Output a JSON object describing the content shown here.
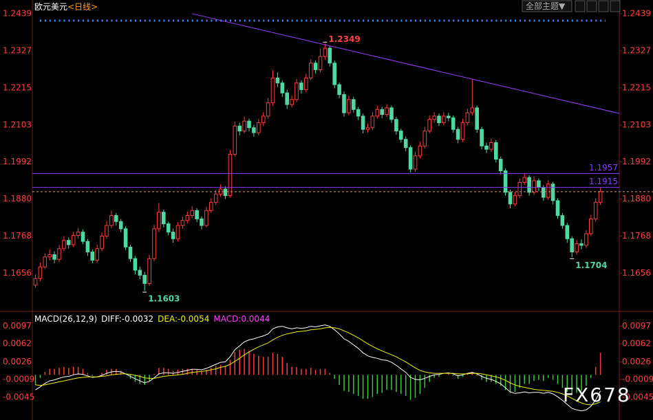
{
  "chart_data": [
    {
      "type": "candlestick",
      "title": "欧元美元",
      "period": "<日线>",
      "up_color": "#ff3c3c",
      "down_color": "#4fd9a2",
      "ylim": [
        1.1547,
        1.247
      ],
      "yticks": [
        1.2439,
        1.2327,
        1.2215,
        1.2103,
        1.1992,
        {
          "value": 1.188,
          "label": "1.1880"
        },
        1.1768,
        1.1656
      ],
      "open": [
        1.162,
        1.164,
        1.1675,
        1.1705,
        1.1712,
        1.1698,
        1.173,
        1.1755,
        1.1742,
        1.177,
        1.178,
        1.1752,
        1.172,
        1.1695,
        1.173,
        1.1768,
        1.18,
        1.183,
        1.1812,
        1.179,
        1.1735,
        1.17,
        1.1665,
        1.165,
        1.1625,
        1.17,
        1.179,
        1.184,
        1.1805,
        1.178,
        1.176,
        1.18,
        1.1815,
        1.183,
        1.1845,
        1.182,
        1.18,
        1.1845,
        1.187,
        1.1895,
        1.191,
        1.189,
        1.2015,
        1.21,
        1.2085,
        1.2115,
        1.2095,
        1.208,
        1.211,
        1.213,
        1.217,
        1.2245,
        1.223,
        1.22,
        1.2165,
        1.218,
        1.223,
        1.221,
        1.2245,
        1.229,
        1.227,
        1.231,
        1.2335,
        1.229,
        1.2225,
        1.2195,
        1.214,
        1.218,
        1.215,
        1.213,
        1.209,
        1.2095,
        1.213,
        1.215,
        1.2135,
        1.2155,
        1.212,
        1.2085,
        1.206,
        1.2035,
        1.197,
        1.201,
        1.204,
        1.2085,
        1.212,
        1.213,
        1.211,
        1.213,
        1.2125,
        1.209,
        1.206,
        1.211,
        1.214,
        1.2155,
        1.209,
        1.204,
        1.203,
        1.205,
        1.2,
        1.1965,
        1.19,
        1.1865,
        1.189,
        1.193,
        1.1945,
        1.19,
        1.1935,
        1.1915,
        1.1885,
        1.1925,
        1.1875,
        1.183,
        1.18,
        1.176,
        1.172,
        1.1745,
        1.174,
        1.1775,
        1.182,
        1.187
      ],
      "high": [
        1.1652,
        1.1688,
        1.1716,
        1.1728,
        1.1722,
        1.1741,
        1.1768,
        1.1764,
        1.1781,
        1.1792,
        1.1788,
        1.176,
        1.1728,
        1.1742,
        1.1779,
        1.1814,
        1.1845,
        1.1838,
        1.182,
        1.1798,
        1.1742,
        1.1708,
        1.1676,
        1.166,
        1.1712,
        1.1802,
        1.1868,
        1.1848,
        1.1812,
        1.179,
        1.181,
        1.1826,
        1.1842,
        1.1858,
        1.1852,
        1.1828,
        1.1856,
        1.1882,
        1.1908,
        1.1924,
        1.1918,
        1.2028,
        1.2114,
        1.211,
        1.2128,
        1.2122,
        1.2104,
        1.2122,
        1.2142,
        1.2184,
        1.2268,
        1.2262,
        1.2238,
        1.221,
        1.2192,
        1.2242,
        1.2238,
        1.2258,
        1.2302,
        1.2298,
        1.2334,
        1.2349,
        1.2342,
        1.2298,
        1.2232,
        1.2204,
        1.2192,
        1.2188,
        1.2158,
        1.2138,
        1.2108,
        1.2142,
        1.2162,
        1.2158,
        1.2166,
        1.2162,
        1.2128,
        1.2092,
        1.2068,
        1.2042,
        1.2022,
        1.2052,
        1.2098,
        1.2132,
        1.2142,
        1.2138,
        1.2142,
        1.214,
        1.2132,
        1.2098,
        1.2122,
        1.2152,
        1.2242,
        1.2162,
        1.2098,
        1.205,
        1.2062,
        1.2058,
        1.2008,
        1.1972,
        1.1908,
        1.1902,
        1.1942,
        1.1958,
        1.1952,
        1.1948,
        1.1942,
        1.1922,
        1.1936,
        1.1932,
        1.1882,
        1.1838,
        1.1808,
        1.1768,
        1.1756,
        1.1758,
        1.1786,
        1.1832,
        1.1882,
        1.1914
      ],
      "low": [
        1.1612,
        1.1632,
        1.1668,
        1.1694,
        1.1686,
        1.169,
        1.1722,
        1.173,
        1.1735,
        1.176,
        1.1744,
        1.1708,
        1.1686,
        1.1688,
        1.1722,
        1.176,
        1.1792,
        1.18,
        1.178,
        1.1726,
        1.169,
        1.1652,
        1.1638,
        1.1603,
        1.1618,
        1.1692,
        1.178,
        1.1794,
        1.177,
        1.1748,
        1.1752,
        1.179,
        1.1806,
        1.1822,
        1.181,
        1.1788,
        1.1794,
        1.1838,
        1.1862,
        1.1886,
        1.188,
        1.1884,
        1.2008,
        1.2072,
        1.2078,
        1.2084,
        1.2068,
        1.2072,
        1.21,
        1.2122,
        1.2162,
        1.2218,
        1.2188,
        1.2152,
        1.2156,
        1.2172,
        1.2198,
        1.2202,
        1.2238,
        1.2258,
        1.2262,
        1.23,
        1.228,
        1.2214,
        1.2184,
        1.2128,
        1.2132,
        1.214,
        1.2118,
        1.2078,
        1.208,
        1.2088,
        1.2122,
        1.2124,
        1.2128,
        1.211,
        1.2074,
        1.205,
        1.2024,
        1.196,
        1.1962,
        1.2002,
        1.2032,
        1.2078,
        1.211,
        1.21,
        1.2102,
        1.2114,
        1.208,
        1.2048,
        1.2052,
        1.2102,
        1.2132,
        1.208,
        1.203,
        1.2018,
        1.2022,
        1.199,
        1.1954,
        1.189,
        1.1852,
        1.1858,
        1.1882,
        1.1922,
        1.189,
        1.1892,
        1.1904,
        1.1874,
        1.1878,
        1.1864,
        1.182,
        1.179,
        1.1748,
        1.1704,
        1.1712,
        1.1728,
        1.1732,
        1.1768,
        1.1812,
        1.1862
      ],
      "close": [
        1.164,
        1.1675,
        1.1705,
        1.1712,
        1.1698,
        1.173,
        1.1755,
        1.1742,
        1.177,
        1.178,
        1.1752,
        1.172,
        1.1695,
        1.173,
        1.1768,
        1.18,
        1.183,
        1.1812,
        1.179,
        1.1735,
        1.17,
        1.1665,
        1.165,
        1.1625,
        1.17,
        1.179,
        1.184,
        1.1805,
        1.178,
        1.176,
        1.18,
        1.1815,
        1.183,
        1.1845,
        1.182,
        1.18,
        1.1845,
        1.187,
        1.1895,
        1.191,
        1.189,
        1.2015,
        1.21,
        1.2085,
        1.2115,
        1.2095,
        1.208,
        1.211,
        1.213,
        1.217,
        1.2245,
        1.223,
        1.22,
        1.2165,
        1.218,
        1.223,
        1.221,
        1.2245,
        1.229,
        1.227,
        1.231,
        1.2335,
        1.229,
        1.2225,
        1.2195,
        1.214,
        1.218,
        1.215,
        1.213,
        1.209,
        1.2095,
        1.213,
        1.215,
        1.2135,
        1.2155,
        1.212,
        1.2085,
        1.206,
        1.2035,
        1.197,
        1.201,
        1.204,
        1.2085,
        1.212,
        1.213,
        1.211,
        1.213,
        1.2125,
        1.209,
        1.206,
        1.211,
        1.214,
        1.2155,
        1.209,
        1.204,
        1.203,
        1.205,
        1.2,
        1.1965,
        1.19,
        1.1865,
        1.189,
        1.193,
        1.1945,
        1.19,
        1.1935,
        1.1915,
        1.1885,
        1.1925,
        1.1875,
        1.183,
        1.18,
        1.176,
        1.172,
        1.1745,
        1.174,
        1.1775,
        1.182,
        1.187,
        1.1902
      ],
      "hlines": [
        {
          "value": 1.1957,
          "color": "#8a3cff"
        },
        {
          "value": 1.1915,
          "color": "#8a3cff"
        }
      ],
      "trendline": {
        "x": [
          33,
          123
        ],
        "y": [
          1.2439,
          1.2138
        ],
        "color": "#9a40ff"
      },
      "last_line_color": "#e8a060",
      "annotations": [
        {
          "index": 61,
          "value": 1.2349,
          "at": "high",
          "color": "#ff4040"
        },
        {
          "index": 23,
          "value": 1.1603,
          "at": "low",
          "color": "#4fd9a2"
        },
        {
          "index": 113,
          "value": 1.1704,
          "at": "low",
          "color": "#4fd9a2"
        }
      ]
    },
    {
      "type": "macd",
      "title": "MACD(26,12,9)",
      "ylim": [
        -0.0082,
        0.012
      ],
      "yticks": [
        0.0097,
        0.0062,
        0.0026,
        -0.0009,
        -0.0045
      ],
      "series": [
        {
          "name": "DIFF:-0.0032",
          "color": "#ffffff",
          "values": [
            -0.003,
            -0.0024,
            -0.0017,
            -0.0012,
            -0.001,
            -0.0007,
            -0.0004,
            -0.0003,
            0,
            0.0002,
            0.0001,
            -0.0002,
            -0.0005,
            -0.0004,
            -0.0001,
            0.0003,
            0.0006,
            0.0007,
            0.0006,
            0.0002,
            -0.0003,
            -0.0008,
            -0.0012,
            -0.0016,
            -0.0013,
            -0.0006,
            0.0002,
            0.0004,
            0.0004,
            0.0003,
            0.0005,
            0.0007,
            0.0009,
            0.0011,
            0.0011,
            0.001,
            0.0013,
            0.0017,
            0.0021,
            0.0025,
            0.0026,
            0.0036,
            0.005,
            0.0058,
            0.0066,
            0.007,
            0.0072,
            0.0075,
            0.0078,
            0.0082,
            0.0092,
            0.0096,
            0.0097,
            0.0094,
            0.0092,
            0.0094,
            0.0093,
            0.0094,
            0.0097,
            0.0096,
            0.0098,
            0.01,
            0.0097,
            0.009,
            0.0082,
            0.0072,
            0.0067,
            0.006,
            0.0053,
            0.0044,
            0.0038,
            0.0035,
            0.0033,
            0.003,
            0.0029,
            0.0025,
            0.0019,
            0.0012,
            0.0005,
            -0.0005,
            -0.0009,
            -0.001,
            -0.0007,
            -0.0003,
            0,
            0.0001,
            0.0003,
            0.0004,
            0.0002,
            -0.0002,
            0,
            0.0003,
            0.0005,
            0.0002,
            -0.0003,
            -0.0007,
            -0.0009,
            -0.0013,
            -0.0018,
            -0.0026,
            -0.0034,
            -0.0037,
            -0.0036,
            -0.0034,
            -0.0036,
            -0.0035,
            -0.0035,
            -0.0037,
            -0.0035,
            -0.0038,
            -0.0044,
            -0.0051,
            -0.0059,
            -0.0067,
            -0.007,
            -0.0072,
            -0.007,
            -0.0063,
            -0.005,
            -0.0032
          ]
        },
        {
          "name": "DEA:-0.0054",
          "color": "#f0f000",
          "values": [
            -0.002,
            -0.0021,
            -0.002,
            -0.0018,
            -0.0016,
            -0.0014,
            -0.0012,
            -0.001,
            -0.0008,
            -0.0006,
            -0.0005,
            -0.0004,
            -0.0004,
            -0.0004,
            -0.0003,
            -0.0002,
            0,
            0.0001,
            0.0002,
            0.0002,
            0.0001,
            -0.0001,
            -0.0003,
            -0.0006,
            -0.0007,
            -0.0007,
            -0.0005,
            -0.0003,
            -0.0002,
            -0.0001,
            0,
            0.0001,
            0.0003,
            0.0005,
            0.0006,
            0.0007,
            0.0008,
            0.001,
            0.0012,
            0.0015,
            0.0017,
            0.0021,
            0.0027,
            0.0033,
            0.004,
            0.0046,
            0.0051,
            0.0056,
            0.006,
            0.0064,
            0.007,
            0.0075,
            0.0079,
            0.0082,
            0.0084,
            0.0086,
            0.0087,
            0.0088,
            0.009,
            0.0091,
            0.0092,
            0.0094,
            0.0095,
            0.0094,
            0.0092,
            0.0088,
            0.0084,
            0.0079,
            0.0074,
            0.0068,
            0.0062,
            0.0057,
            0.0052,
            0.0048,
            0.0044,
            0.004,
            0.0036,
            0.0031,
            0.0026,
            0.002,
            0.0014,
            0.0009,
            0.0006,
            0.0004,
            0.0003,
            0.0003,
            0.0003,
            0.0003,
            0.0003,
            0.0002,
            0.0002,
            0.0002,
            0.0003,
            0.0003,
            0.0002,
            0,
            -0.0002,
            -0.0004,
            -0.0007,
            -0.0011,
            -0.0016,
            -0.002,
            -0.0023,
            -0.0025,
            -0.0027,
            -0.0029,
            -0.003,
            -0.0031,
            -0.0032,
            -0.0033,
            -0.0035,
            -0.0038,
            -0.0042,
            -0.0047,
            -0.0052,
            -0.0056,
            -0.0059,
            -0.006,
            -0.0058,
            -0.0054
          ]
        }
      ],
      "bars": {
        "name": "MACD:0.0044",
        "color": "#ff40ff",
        "up_color": "#ff3c3c",
        "down_color": "#3cc83c",
        "values": [
          -0.002,
          -0.0006,
          0.0006,
          0.0012,
          0.0012,
          0.0014,
          0.0016,
          0.0014,
          0.0016,
          0.0016,
          0.0012,
          0.0004,
          -0.0002,
          0,
          0.0004,
          0.001,
          0.0012,
          0.0012,
          0.0008,
          0,
          -0.0008,
          -0.0014,
          -0.0018,
          -0.002,
          -0.0012,
          0.0002,
          0.0014,
          0.0014,
          0.0012,
          0.0008,
          0.001,
          0.0012,
          0.0012,
          0.0012,
          0.001,
          0.0006,
          0.001,
          0.0014,
          0.0018,
          0.002,
          0.0018,
          0.003,
          0.0046,
          0.005,
          0.0052,
          0.0048,
          0.0042,
          0.0038,
          0.0036,
          0.0036,
          0.0044,
          0.0042,
          0.0036,
          0.0024,
          0.0016,
          0.0016,
          0.0012,
          0.0012,
          0.0014,
          0.001,
          0.0012,
          0.0012,
          0.0004,
          -0.0008,
          -0.002,
          -0.0032,
          -0.0034,
          -0.0038,
          -0.0042,
          -0.0048,
          -0.0048,
          -0.0044,
          -0.0038,
          -0.0036,
          -0.003,
          -0.003,
          -0.0034,
          -0.0038,
          -0.0042,
          -0.005,
          -0.0046,
          -0.0038,
          -0.0026,
          -0.0014,
          -0.0006,
          -0.0004,
          0,
          0.0002,
          -0.0002,
          -0.0008,
          -0.0004,
          0.0002,
          0.0004,
          -0.0002,
          -0.001,
          -0.0014,
          -0.0014,
          -0.0018,
          -0.0022,
          -0.003,
          -0.0036,
          -0.0034,
          -0.0026,
          -0.0018,
          -0.0018,
          -0.0012,
          -0.001,
          -0.0012,
          -0.0006,
          -0.001,
          -0.0018,
          -0.0026,
          -0.0034,
          -0.004,
          -0.0036,
          -0.0032,
          -0.0022,
          -0.0006,
          0.0016,
          0.0044
        ]
      }
    }
  ],
  "toolbar": {
    "theme": "全部主题▼"
  },
  "watermark": "FX678"
}
